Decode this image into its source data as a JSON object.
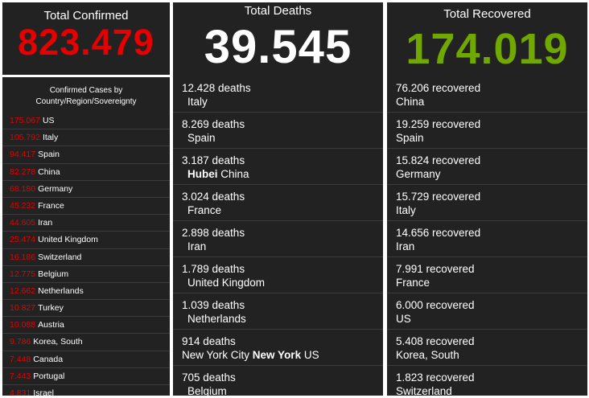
{
  "confirmed": {
    "title": "Total Confirmed",
    "total": "823.479",
    "list_title": "Confirmed Cases by Country/Region/Sovereignty",
    "rows": [
      {
        "num": "175.067",
        "place": "US"
      },
      {
        "num": "105.792",
        "place": "Italy"
      },
      {
        "num": "94.417",
        "place": "Spain"
      },
      {
        "num": "82.278",
        "place": "China"
      },
      {
        "num": "68.180",
        "place": "Germany"
      },
      {
        "num": "45.232",
        "place": "France"
      },
      {
        "num": "44.605",
        "place": "Iran"
      },
      {
        "num": "25.474",
        "place": "United Kingdom"
      },
      {
        "num": "16.186",
        "place": "Switzerland"
      },
      {
        "num": "12.775",
        "place": "Belgium"
      },
      {
        "num": "12.662",
        "place": "Netherlands"
      },
      {
        "num": "10.827",
        "place": "Turkey"
      },
      {
        "num": "10.088",
        "place": "Austria"
      },
      {
        "num": "9.786",
        "place": "Korea, South"
      },
      {
        "num": "7.448",
        "place": "Canada"
      },
      {
        "num": "7.443",
        "place": "Portugal"
      },
      {
        "num": "4.831",
        "place": "Israel"
      }
    ]
  },
  "deaths": {
    "title": "Total Deaths",
    "total": "39.545",
    "rows": [
      {
        "count": "12.428 deaths",
        "place_pre": "Italy",
        "place_bold": "",
        "place_post": ""
      },
      {
        "count": "8.269 deaths",
        "place_pre": "Spain",
        "place_bold": "",
        "place_post": ""
      },
      {
        "count": "3.187 deaths",
        "place_pre": "",
        "place_bold": "Hubei",
        "place_post": " China"
      },
      {
        "count": "3.024 deaths",
        "place_pre": "France",
        "place_bold": "",
        "place_post": ""
      },
      {
        "count": "2.898 deaths",
        "place_pre": "Iran",
        "place_bold": "",
        "place_post": ""
      },
      {
        "count": "1.789 deaths",
        "place_pre": "United Kingdom",
        "place_bold": "",
        "place_post": ""
      },
      {
        "count": "1.039 deaths",
        "place_pre": "Netherlands",
        "place_bold": "",
        "place_post": ""
      },
      {
        "count": "914 deaths",
        "place_pre": "New York City ",
        "place_bold": "New York",
        "place_post": " US"
      },
      {
        "count": "705 deaths",
        "place_pre": "Belgium",
        "place_bold": "",
        "place_post": ""
      }
    ]
  },
  "recovered": {
    "title": "Total Recovered",
    "total": "174.019",
    "rows": [
      {
        "count": "76.206 recovered",
        "place": "China"
      },
      {
        "count": "19.259 recovered",
        "place": "Spain"
      },
      {
        "count": "15.824 recovered",
        "place": "Germany"
      },
      {
        "count": "15.729 recovered",
        "place": "Italy"
      },
      {
        "count": "14.656 recovered",
        "place": "Iran"
      },
      {
        "count": "7.991 recovered",
        "place": "France"
      },
      {
        "count": "6.000 recovered",
        "place": "US"
      },
      {
        "count": "5.408 recovered",
        "place": "Korea, South"
      },
      {
        "count": "1.823 recovered",
        "place": "Switzerland"
      }
    ]
  },
  "colors": {
    "confirmed": "#e60000",
    "recovered": "#70a800",
    "panel_bg": "#222222"
  }
}
